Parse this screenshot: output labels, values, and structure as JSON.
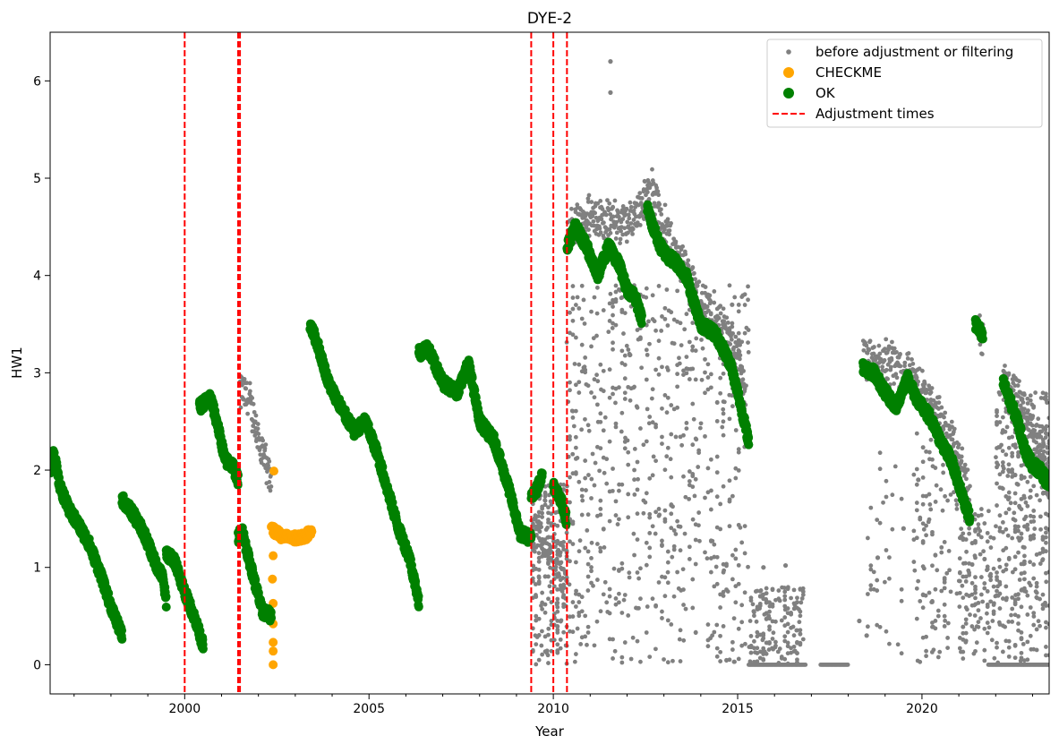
{
  "chart_data": {
    "type": "scatter",
    "title": "DYE-2",
    "xlabel": "Year",
    "ylabel": "HW1",
    "xlim": [
      1996.35,
      2023.45
    ],
    "ylim": [
      -0.3,
      6.5
    ],
    "x_major_ticks": [
      2000,
      2005,
      2010,
      2015,
      2020
    ],
    "x_major_tick_labels": [
      "2000",
      "2005",
      "2010",
      "2015",
      "2020"
    ],
    "y_ticks": [
      0,
      1,
      2,
      3,
      4,
      5,
      6
    ],
    "y_tick_labels": [
      "0",
      "1",
      "2",
      "3",
      "4",
      "5",
      "6"
    ],
    "grid": false,
    "legend_position": "top-right",
    "colors": {
      "before": "#808080",
      "checkme": "#FFA500",
      "ok": "#008000",
      "adjustment": "#FF0000"
    },
    "adjustment_times": [
      2000.0,
      2001.45,
      2001.5,
      2009.4,
      2010.0,
      2010.37
    ],
    "series": [
      {
        "name": "before adjustment or filtering",
        "color": "#808080",
        "marker": "small-dot",
        "segments": [
          {
            "x": [
              2001.5,
              2001.8,
              2002.0,
              2002.2,
              2002.35
            ],
            "y": [
              2.9,
              2.75,
              2.4,
              2.1,
              1.95
            ]
          },
          {
            "x": [
              2009.4,
              2010.0,
              2010.37
            ],
            "y": [
              1.5,
              1.2,
              0.8
            ]
          },
          {
            "x": [
              2010.37,
              2011.0,
              2012.0,
              2012.7,
              2013.0,
              2014.0,
              2015.0,
              2015.2
            ],
            "y": [
              4.5,
              4.7,
              4.6,
              4.95,
              4.6,
              3.8,
              3.3,
              2.8
            ]
          },
          {
            "x": [
              2018.4,
              2019.0,
              2019.5,
              2020.0,
              2020.5,
              2021.0,
              2021.3
            ],
            "y": [
              3.25,
              3.2,
              3.1,
              2.9,
              2.6,
              2.2,
              1.8
            ]
          },
          {
            "x": [
              2021.5,
              2021.65
            ],
            "y": [
              3.6,
              3.4
            ]
          },
          {
            "x": [
              2022.2,
              2022.6,
              2023.0,
              2023.45
            ],
            "y": [
              3.0,
              2.8,
              2.5,
              2.3
            ]
          }
        ],
        "points": [
          {
            "x": 2011.55,
            "y": 6.2
          },
          {
            "x": 2011.55,
            "y": 5.88
          },
          {
            "x": 2014.85,
            "y": 3.7
          },
          {
            "x": 2015.7,
            "y": 1.0
          },
          {
            "x": 2018.3,
            "y": 0.45
          },
          {
            "x": 2018.5,
            "y": 0.3
          },
          {
            "x": 2016.3,
            "y": 1.02
          },
          {
            "x": 2019.9,
            "y": 1.9
          },
          {
            "x": 2019.5,
            "y": 1.4
          },
          {
            "x": 2018.8,
            "y": 1.1
          }
        ],
        "scatter_regions": [
          {
            "x": [
              2009.4,
              2010.4
            ],
            "y": [
              0.0,
              1.9
            ],
            "density": 1.4
          },
          {
            "x": [
              2010.4,
              2015.3
            ],
            "y": [
              0.0,
              3.9
            ],
            "density": 1.0
          },
          {
            "x": [
              2015.3,
              2016.8
            ],
            "y": [
              0.0,
              0.8
            ],
            "density": 0.8
          },
          {
            "x": [
              2018.5,
              2019.5
            ],
            "y": [
              0.0,
              2.2
            ],
            "density": 0.25
          },
          {
            "x": [
              2019.8,
              2021.0
            ],
            "y": [
              0.0,
              2.4
            ],
            "density": 0.7
          },
          {
            "x": [
              2021.0,
              2022.0
            ],
            "y": [
              0.0,
              1.6
            ],
            "density": 1.0
          },
          {
            "x": [
              2022.0,
              2023.45
            ],
            "y": [
              0.0,
              2.8
            ],
            "density": 1.8
          }
        ],
        "zero_runs": [
          [
            2015.3,
            2016.85
          ],
          [
            2017.25,
            2018.0
          ],
          [
            2021.8,
            2023.45
          ]
        ]
      },
      {
        "name": "CHECKME",
        "color": "#FFA500",
        "marker": "circle",
        "segments": [
          {
            "x": [
              2002.35,
              2002.6,
              2002.9,
              2003.2,
              2003.45
            ],
            "y": [
              1.4,
              1.33,
              1.3,
              1.32,
              1.35
            ]
          }
        ],
        "points": [
          {
            "x": 2002.42,
            "y": 1.99
          },
          {
            "x": 2002.4,
            "y": 1.12
          },
          {
            "x": 2002.38,
            "y": 0.88
          },
          {
            "x": 2002.4,
            "y": 0.63
          },
          {
            "x": 2002.4,
            "y": 0.42
          },
          {
            "x": 2002.4,
            "y": 0.23
          },
          {
            "x": 2002.4,
            "y": 0.14
          },
          {
            "x": 2002.4,
            "y": 0.0
          }
        ]
      },
      {
        "name": "OK",
        "color": "#008000",
        "marker": "circle",
        "segments": [
          {
            "x": [
              1996.35,
              1996.45,
              1996.6,
              1996.85,
              1997.1,
              1997.4,
              1997.7,
              1998.0,
              1998.3
            ],
            "y": [
              2.0,
              2.2,
              1.85,
              1.6,
              1.45,
              1.25,
              0.95,
              0.6,
              0.3
            ]
          },
          {
            "x": [
              1998.3,
              1998.6,
              1998.9,
              1999.2,
              1999.4,
              1999.5
            ],
            "y": [
              1.7,
              1.55,
              1.35,
              1.05,
              0.9,
              0.65
            ]
          },
          {
            "x": [
              1999.5,
              1999.75,
              2000.0,
              2000.3,
              2000.5
            ],
            "y": [
              1.15,
              1.05,
              0.75,
              0.45,
              0.2
            ]
          },
          {
            "x": [
              2000.4,
              2000.7,
              2000.9,
              2001.1,
              2001.3,
              2001.45
            ],
            "y": [
              2.65,
              2.75,
              2.45,
              2.1,
              2.05,
              1.9
            ]
          },
          {
            "x": [
              2001.45,
              2001.55,
              2001.7,
              2001.9,
              2002.1,
              2002.35
            ],
            "y": [
              1.3,
              1.4,
              1.15,
              0.85,
              0.55,
              0.5
            ]
          },
          {
            "x": [
              2003.4,
              2003.6,
              2003.9,
              2004.3,
              2004.6,
              2004.9,
              2005.2,
              2005.5,
              2005.8,
              2006.1,
              2006.35
            ],
            "y": [
              3.5,
              3.3,
              2.9,
              2.6,
              2.4,
              2.5,
              2.2,
              1.8,
              1.4,
              1.1,
              0.65
            ]
          },
          {
            "x": [
              2006.35,
              2006.6,
              2007.0,
              2007.4,
              2007.7,
              2008.0,
              2008.4,
              2008.8,
              2009.1,
              2009.4
            ],
            "y": [
              3.2,
              3.25,
              2.9,
              2.8,
              3.1,
              2.5,
              2.3,
              1.8,
              1.35,
              1.3
            ]
          },
          {
            "x": [
              2009.4,
              2009.55,
              2009.7
            ],
            "y": [
              1.75,
              1.8,
              1.95
            ]
          },
          {
            "x": [
              2010.0,
              2010.2,
              2010.35
            ],
            "y": [
              1.85,
              1.7,
              1.5
            ]
          },
          {
            "x": [
              2010.37,
              2010.6,
              2010.9,
              2011.2,
              2011.5,
              2011.8,
              2012.0,
              2012.2,
              2012.4
            ],
            "y": [
              4.3,
              4.5,
              4.3,
              4.0,
              4.3,
              4.1,
              3.85,
              3.8,
              3.55
            ]
          },
          {
            "x": [
              2012.55,
              2012.7,
              2012.9,
              2013.1,
              2013.3,
              2013.6,
              2014.0,
              2014.4,
              2014.8,
              2015.0,
              2015.3
            ],
            "y": [
              4.7,
              4.5,
              4.3,
              4.2,
              4.15,
              4.0,
              3.5,
              3.4,
              3.1,
              2.8,
              2.3
            ]
          },
          {
            "x": [
              2018.4,
              2018.7,
              2019.0,
              2019.3,
              2019.6,
              2019.9,
              2020.2,
              2020.5,
              2020.8,
              2021.0,
              2021.3
            ],
            "y": [
              3.05,
              3.0,
              2.8,
              2.65,
              2.95,
              2.7,
              2.55,
              2.3,
              2.1,
              1.85,
              1.5
            ]
          },
          {
            "x": [
              2021.45,
              2021.55,
              2021.65
            ],
            "y": [
              3.5,
              3.45,
              3.35
            ]
          },
          {
            "x": [
              2022.2,
              2022.4,
              2022.6,
              2022.8,
              2023.0,
              2023.2,
              2023.45
            ],
            "y": [
              2.9,
              2.7,
              2.5,
              2.2,
              2.05,
              2.0,
              1.85
            ]
          }
        ],
        "points": []
      }
    ],
    "legend": [
      {
        "label": "before adjustment or filtering",
        "kind": "small-dot",
        "color": "#808080"
      },
      {
        "label": "CHECKME",
        "kind": "circle",
        "color": "#FFA500"
      },
      {
        "label": "OK",
        "kind": "circle",
        "color": "#008000"
      },
      {
        "label": "Adjustment times",
        "kind": "dashed-line",
        "color": "#FF0000"
      }
    ]
  }
}
